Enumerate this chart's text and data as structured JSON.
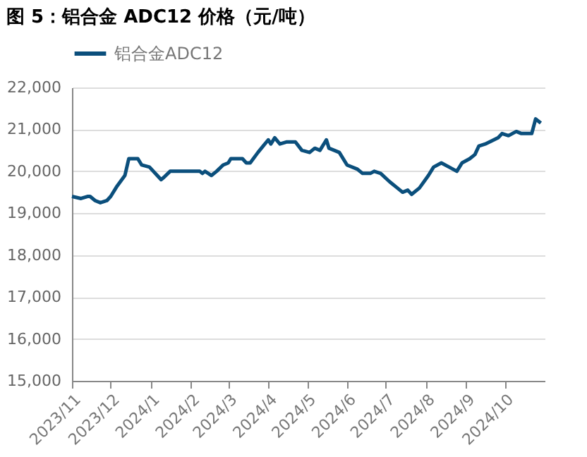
{
  "chart_data": {
    "type": "line",
    "title": "图 5：铝合金 ADC12 价格（元/吨）",
    "x": [
      "2023-11-01",
      "2023-11-08",
      "2023-11-13",
      "2023-11-15",
      "2023-11-19",
      "2023-11-23",
      "2023-11-28",
      "2023-12-01",
      "2023-12-06",
      "2023-12-12",
      "2023-12-15",
      "2023-12-22",
      "2023-12-25",
      "2023-12-31",
      "2024-01-06",
      "2024-01-09",
      "2024-01-11",
      "2024-01-16",
      "2024-02-08",
      "2024-02-10",
      "2024-02-12",
      "2024-02-17",
      "2024-02-21",
      "2024-02-26",
      "2024-03-01",
      "2024-03-03",
      "2024-03-12",
      "2024-03-15",
      "2024-03-18",
      "2024-03-24",
      "2024-03-28",
      "2024-04-01",
      "2024-04-03",
      "2024-04-06",
      "2024-04-10",
      "2024-04-15",
      "2024-04-22",
      "2024-04-27",
      "2024-05-03",
      "2024-05-07",
      "2024-05-11",
      "2024-05-16",
      "2024-05-18",
      "2024-05-26",
      "2024-06-01",
      "2024-06-09",
      "2024-06-13",
      "2024-06-19",
      "2024-06-22",
      "2024-06-27",
      "2024-07-04",
      "2024-07-10",
      "2024-07-14",
      "2024-07-18",
      "2024-07-21",
      "2024-07-27",
      "2024-08-03",
      "2024-08-07",
      "2024-08-13",
      "2024-08-19",
      "2024-08-25",
      "2024-08-29",
      "2024-09-04",
      "2024-09-08",
      "2024-09-11",
      "2024-09-16",
      "2024-09-26",
      "2024-09-29",
      "2024-10-04",
      "2024-10-10",
      "2024-10-14",
      "2024-10-22",
      "2024-10-25",
      "2024-10-29"
    ],
    "series": [
      {
        "name": "铝合金ADC12",
        "color": "#0b4f7c",
        "values": [
          19400,
          19350,
          19400,
          19400,
          19300,
          19250,
          19300,
          19400,
          19650,
          19900,
          20300,
          20300,
          20150,
          20100,
          19900,
          19800,
          19850,
          20000,
          20000,
          19950,
          20000,
          19900,
          20000,
          20150,
          20200,
          20300,
          20300,
          20200,
          20200,
          20450,
          20600,
          20750,
          20650,
          20800,
          20650,
          20700,
          20700,
          20500,
          20450,
          20550,
          20500,
          20750,
          20550,
          20450,
          20150,
          20050,
          19950,
          19950,
          20000,
          19950,
          19750,
          19600,
          19500,
          19550,
          19450,
          19600,
          19900,
          20100,
          20200,
          20100,
          20000,
          20200,
          20300,
          20400,
          20600,
          20650,
          20800,
          20900,
          20850,
          20950,
          20900,
          20900,
          21250,
          21150
        ]
      }
    ],
    "xlim": [
      "2023-11-01",
      "2024-11-01"
    ],
    "xticks": [
      {
        "value": "2023-11",
        "label": "2023/11"
      },
      {
        "value": "2023-12",
        "label": "2023/12"
      },
      {
        "value": "2024-01",
        "label": "2024/1"
      },
      {
        "value": "2024-02",
        "label": "2024/2"
      },
      {
        "value": "2024-03",
        "label": "2024/3"
      },
      {
        "value": "2024-04",
        "label": "2024/4"
      },
      {
        "value": "2024-05",
        "label": "2024/5"
      },
      {
        "value": "2024-06",
        "label": "2024/6"
      },
      {
        "value": "2024-07",
        "label": "2024/7"
      },
      {
        "value": "2024-08",
        "label": "2024/8"
      },
      {
        "value": "2024-09",
        "label": "2024/9"
      },
      {
        "value": "2024-10",
        "label": "2024/10"
      }
    ],
    "ylim": [
      15000,
      22000
    ],
    "yticks": [
      {
        "value": 15000,
        "label": "15,000"
      },
      {
        "value": 16000,
        "label": "16,000"
      },
      {
        "value": 17000,
        "label": "17,000"
      },
      {
        "value": 18000,
        "label": "18,000"
      },
      {
        "value": 19000,
        "label": "19,000"
      },
      {
        "value": 20000,
        "label": "20,000"
      },
      {
        "value": 21000,
        "label": "21,000"
      },
      {
        "value": 22000,
        "label": "22,000"
      }
    ],
    "grid": "y",
    "legend": "top",
    "line_style": "solid",
    "marker": "none"
  }
}
